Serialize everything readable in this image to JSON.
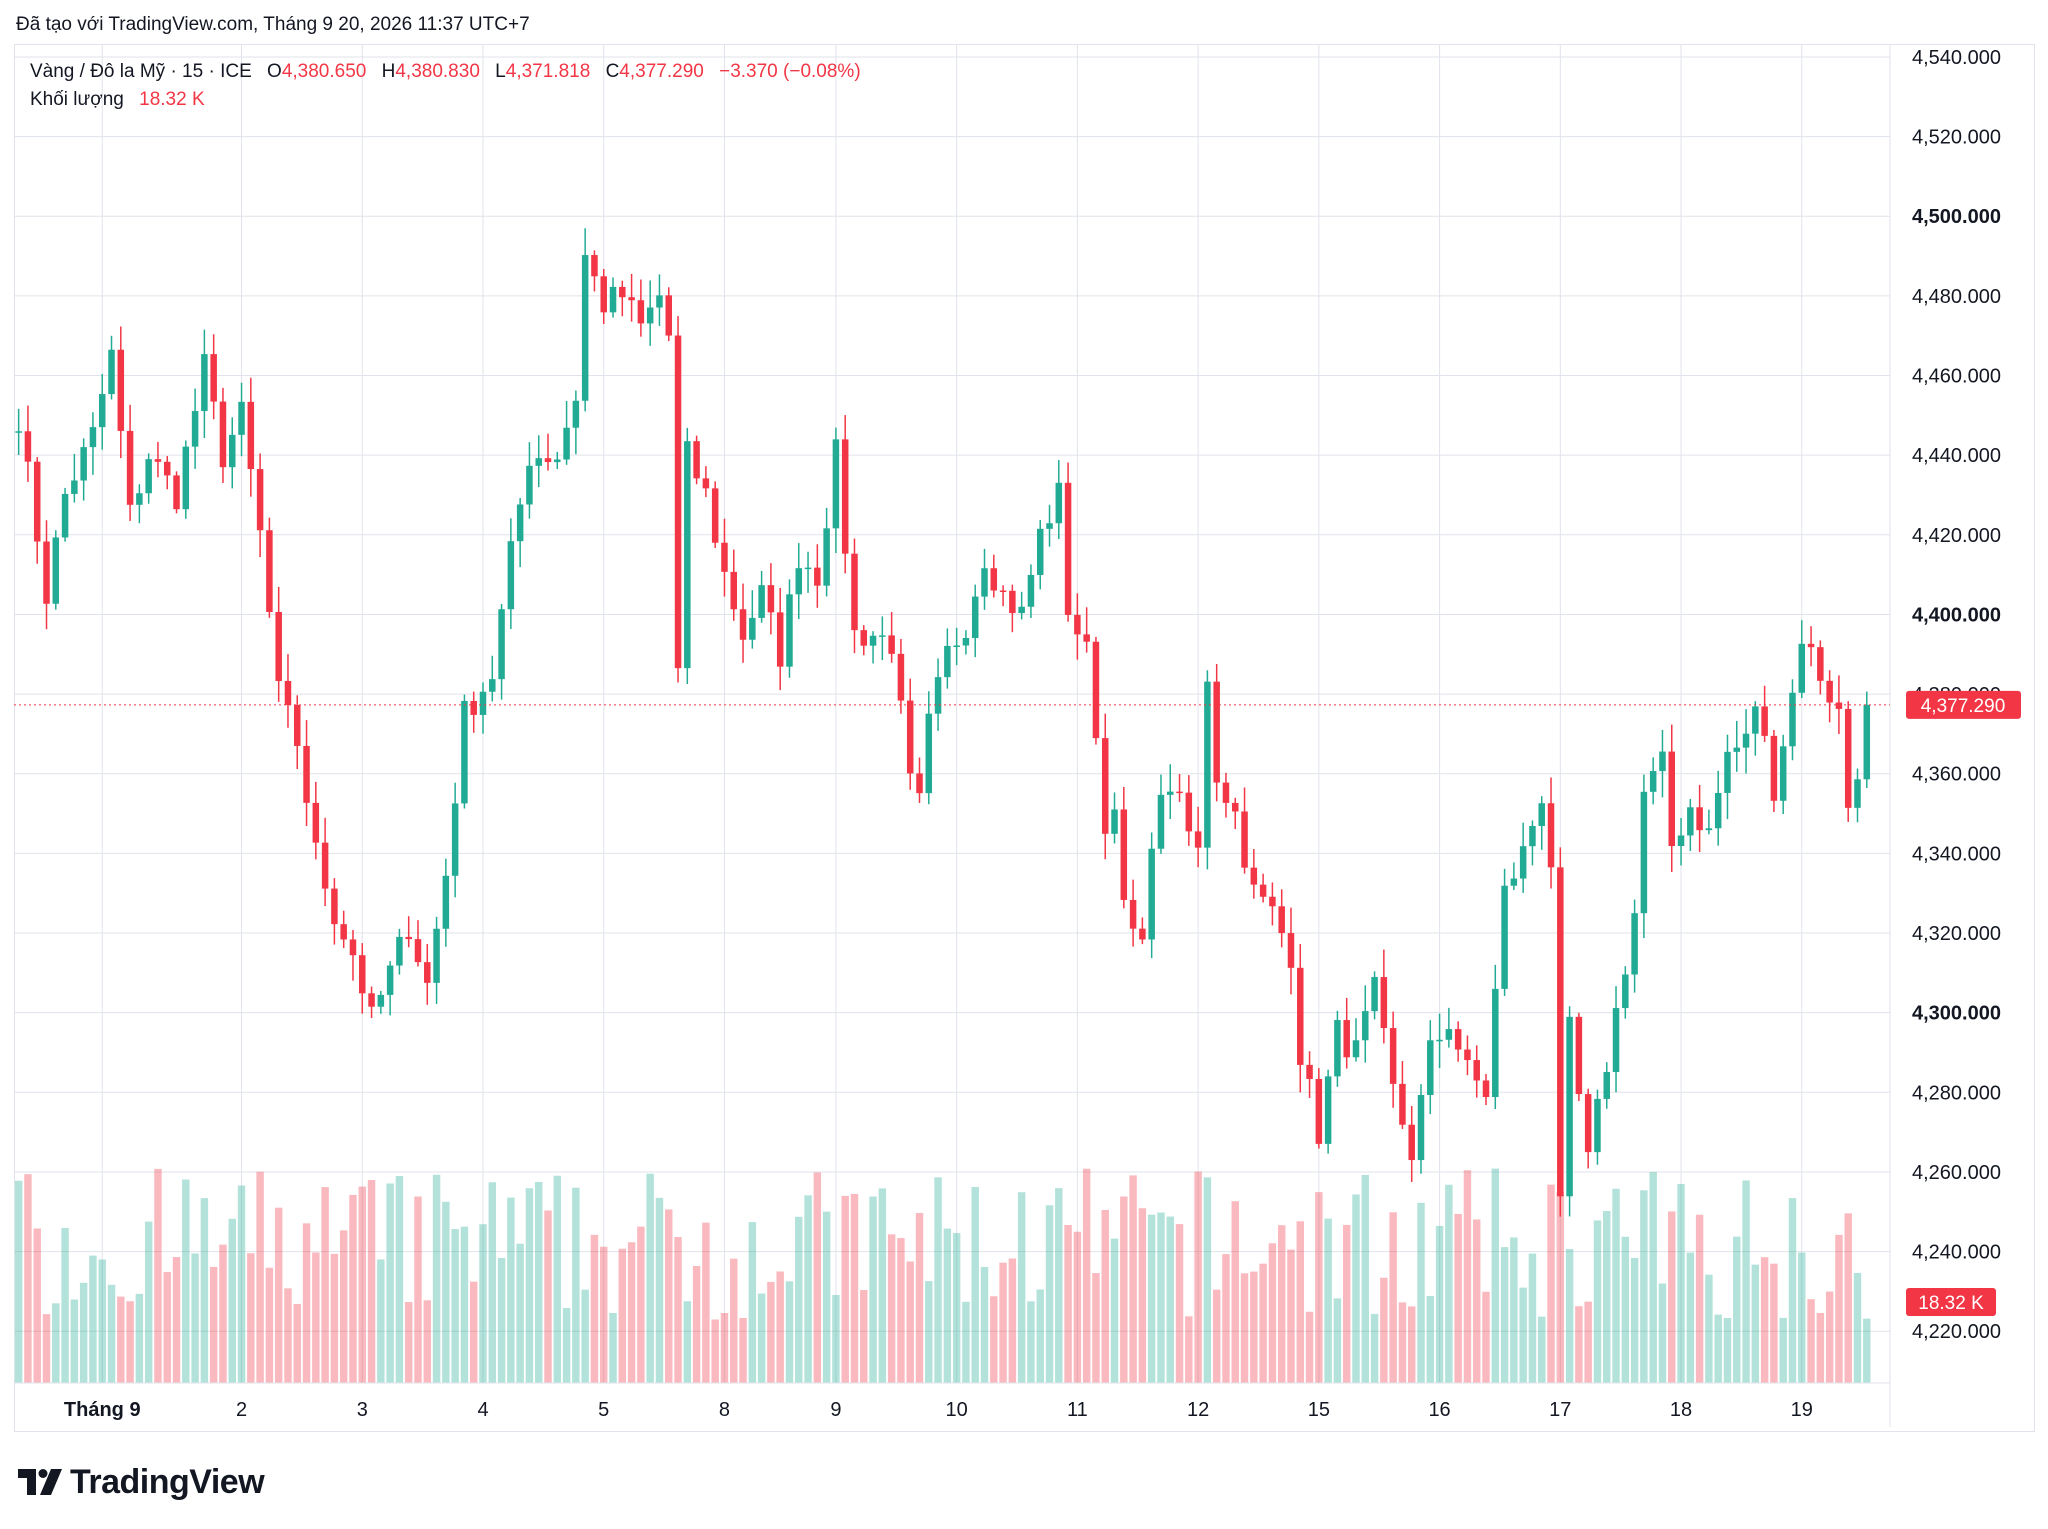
{
  "header": {
    "credit": "Đã tạo với TradingView.com, Tháng 9 20, 2026 11:37 UTC+7"
  },
  "legend": {
    "symbol": "Vàng / Đô la Mỹ · 15 · ICE",
    "open_label": "O",
    "open": "4,380.650",
    "high_label": "H",
    "high": "4,380.830",
    "low_label": "L",
    "low": "4,371.818",
    "close_label": "C",
    "close": "4,377.290",
    "change": "−3.370 (−0.08%)",
    "volume_label": "Khối lượng",
    "volume": "18.32 K"
  },
  "brand": {
    "name": "TradingView"
  },
  "colors": {
    "up": "#22ab94",
    "down": "#f23645",
    "grid": "#e0e3eb",
    "text": "#131722"
  },
  "chart_data": {
    "type": "candlestick",
    "price_axis": {
      "labels": [
        "4,540.000",
        "4,520.000",
        "4,500.000",
        "4,480.000",
        "4,460.000",
        "4,440.000",
        "4,420.000",
        "4,400.000",
        "4,380.000",
        "4,360.000",
        "4,340.000",
        "4,320.000",
        "4,300.000",
        "4,280.000",
        "4,260.000",
        "4,240.000",
        "4,220.000"
      ],
      "values": [
        4540,
        4520,
        4500,
        4480,
        4460,
        4440,
        4420,
        4400,
        4380,
        4360,
        4340,
        4320,
        4300,
        4280,
        4260,
        4240,
        4220
      ],
      "bold": [
        4500,
        4400,
        4300
      ],
      "range": [
        4207,
        4543
      ]
    },
    "time_axis": {
      "labels": [
        "Tháng 9",
        "2",
        "3",
        "4",
        "5",
        "8",
        "9",
        "10",
        "11",
        "12",
        "15",
        "16",
        "17",
        "18",
        "19"
      ],
      "bold_first": true
    },
    "last_price": {
      "value": 4377.29,
      "label": "4,377.290"
    },
    "last_volume": {
      "label": "18.32 K"
    },
    "path": [
      [
        0,
        4450
      ],
      [
        3,
        4405
      ],
      [
        5,
        4430
      ],
      [
        8,
        4445
      ],
      [
        10,
        4465
      ],
      [
        12,
        4425
      ],
      [
        14,
        4440
      ],
      [
        17,
        4430
      ],
      [
        20,
        4462
      ],
      [
        22,
        4440
      ],
      [
        24,
        4450
      ],
      [
        26,
        4420
      ],
      [
        28,
        4380
      ],
      [
        30,
        4368
      ],
      [
        32,
        4340
      ],
      [
        34,
        4325
      ],
      [
        36,
        4315
      ],
      [
        38,
        4298
      ],
      [
        40,
        4310
      ],
      [
        42,
        4322
      ],
      [
        44,
        4307
      ],
      [
        46,
        4335
      ],
      [
        48,
        4375
      ],
      [
        51,
        4385
      ],
      [
        53,
        4415
      ],
      [
        55,
        4440
      ],
      [
        58,
        4440
      ],
      [
        60,
        4455
      ],
      [
        61,
        4490
      ],
      [
        63,
        4478
      ],
      [
        65,
        4480
      ],
      [
        67,
        4472
      ],
      [
        69,
        4480
      ],
      [
        70,
        4470
      ],
      [
        71,
        4385
      ],
      [
        72,
        4440
      ],
      [
        74,
        4430
      ],
      [
        76,
        4410
      ],
      [
        78,
        4395
      ],
      [
        80,
        4405
      ],
      [
        82,
        4390
      ],
      [
        84,
        4415
      ],
      [
        86,
        4410
      ],
      [
        88,
        4440
      ],
      [
        90,
        4395
      ],
      [
        92,
        4395
      ],
      [
        94,
        4393
      ],
      [
        95,
        4375
      ],
      [
        96,
        4357
      ],
      [
        97,
        4352
      ],
      [
        98,
        4372
      ],
      [
        100,
        4390
      ],
      [
        102,
        4398
      ],
      [
        104,
        4415
      ],
      [
        106,
        4405
      ],
      [
        108,
        4400
      ],
      [
        110,
        4420
      ],
      [
        112,
        4430
      ],
      [
        113,
        4402
      ],
      [
        115,
        4390
      ],
      [
        116,
        4372
      ],
      [
        117,
        4345
      ],
      [
        118,
        4355
      ],
      [
        119,
        4325
      ],
      [
        121,
        4315
      ],
      [
        122,
        4345
      ],
      [
        124,
        4358
      ],
      [
        126,
        4345
      ],
      [
        127,
        4340
      ],
      [
        128,
        4385
      ],
      [
        129,
        4360
      ],
      [
        131,
        4350
      ],
      [
        133,
        4330
      ],
      [
        135,
        4325
      ],
      [
        137,
        4315
      ],
      [
        138,
        4290
      ],
      [
        139,
        4280
      ],
      [
        140,
        4270
      ],
      [
        142,
        4295
      ],
      [
        144,
        4290
      ],
      [
        146,
        4305
      ],
      [
        148,
        4280
      ],
      [
        150,
        4265
      ],
      [
        152,
        4290
      ],
      [
        154,
        4298
      ],
      [
        156,
        4285
      ],
      [
        158,
        4280
      ],
      [
        160,
        4330
      ],
      [
        162,
        4340
      ],
      [
        164,
        4355
      ],
      [
        165,
        4338
      ],
      [
        166,
        4250
      ],
      [
        167,
        4295
      ],
      [
        169,
        4262
      ],
      [
        170,
        4275
      ],
      [
        172,
        4300
      ],
      [
        174,
        4325
      ],
      [
        175,
        4355
      ],
      [
        177,
        4362
      ],
      [
        178,
        4342
      ],
      [
        180,
        4352
      ],
      [
        182,
        4345
      ],
      [
        184,
        4365
      ],
      [
        186,
        4368
      ],
      [
        187,
        4378
      ],
      [
        189,
        4357
      ],
      [
        191,
        4380
      ],
      [
        192,
        4395
      ],
      [
        194,
        4385
      ],
      [
        195,
        4380
      ],
      [
        196,
        4375
      ],
      [
        197,
        4352
      ],
      [
        198,
        4362
      ],
      [
        199,
        4377
      ]
    ],
    "candle_count": 200,
    "volume": {
      "range": [
        0,
        230000
      ]
    }
  }
}
